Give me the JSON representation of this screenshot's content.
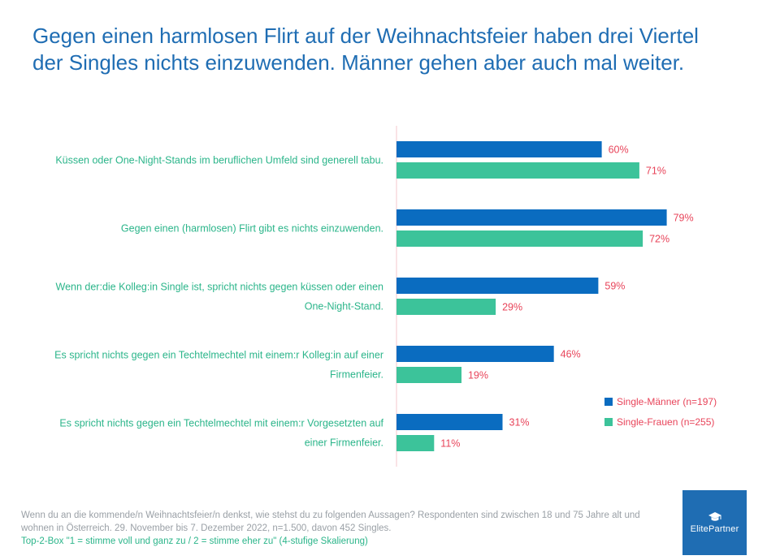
{
  "title": {
    "line1": "Gegen einen harmlosen Flirt auf der Weihnachtsfeier haben drei Viertel",
    "line2": "der Singles nichts einzuwenden. Männer gehen aber auch mal weiter."
  },
  "chart_data": {
    "type": "bar",
    "orientation": "horizontal",
    "unit": "%",
    "xlim": [
      0,
      100
    ],
    "grid": false,
    "legend_position": "bottom-right",
    "categories": [
      [
        "Küssen oder One-Night-Stands im beruflichen Umfeld sind generell tabu."
      ],
      [
        "Gegen einen (harmlosen) Flirt gibt es nichts einzuwenden."
      ],
      [
        "Wenn der:die Kolleg:in Single ist, spricht nichts gegen küssen oder einen",
        "One-Night-Stand."
      ],
      [
        "Es spricht nichts gegen ein Techtelmechtel mit einem:r Kolleg:in auf einer",
        "Firmenfeier."
      ],
      [
        "Es spricht nichts gegen ein Techtelmechtel mit einem:r Vorgesetzten auf",
        "einer Firmenfeier."
      ]
    ],
    "series": [
      {
        "name": "Single-Männer (n=197)",
        "color": "#0a6cc0",
        "values": [
          60,
          79,
          59,
          46,
          31
        ]
      },
      {
        "name": "Single-Frauen (n=255)",
        "color": "#3cc39a",
        "values": [
          71,
          72,
          29,
          19,
          11
        ]
      }
    ],
    "label_color": "#e8445a",
    "category_color": "#2bb58a",
    "axis_color": "#f4c7cc"
  },
  "footnote": {
    "text": "Wenn du an die kommende/n Weihnachtsfeier/n denkst, wie stehst du zu folgenden Aussagen? Respondenten sind zwischen 18 und 75 Jahre alt und wohnen in Österreich. 29. November bis 7. Dezember 2022, n=1.500, davon 452 Singles.",
    "scale": "Top-2-Box \"1 = stimme voll und ganz zu / 2 = stimme eher zu\" (4-stufige Skalierung)"
  },
  "logo": {
    "text": "ElitePartner",
    "icon": "graduation-cap-icon"
  }
}
